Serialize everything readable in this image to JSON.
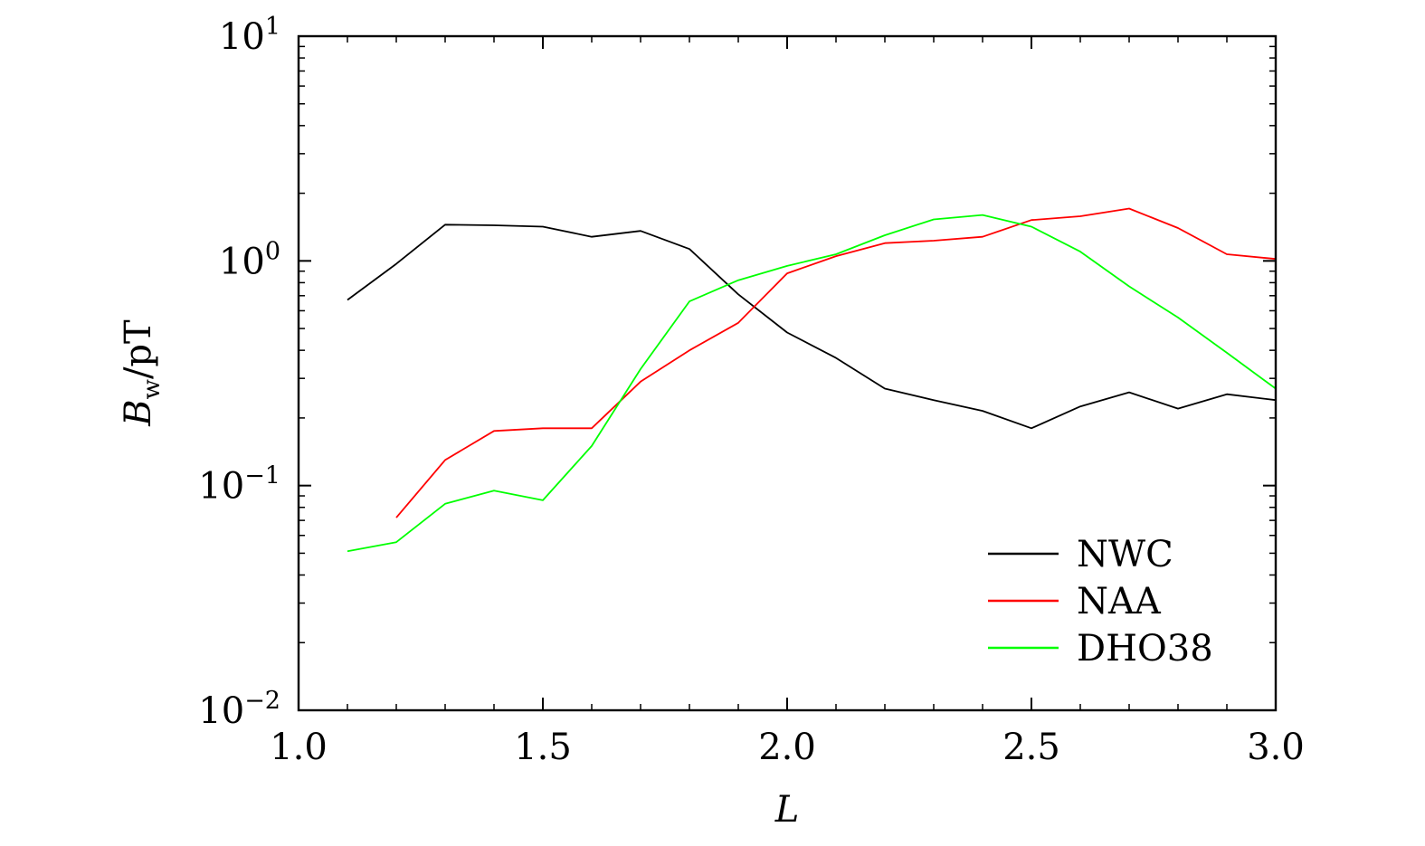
{
  "chart_data": {
    "type": "line",
    "x_scale": "linear",
    "y_scale": "log",
    "xlim": [
      1.0,
      3.0
    ],
    "ylim": [
      0.01,
      10
    ],
    "x_ticks": [
      {
        "value": 1.0,
        "label": "1.0"
      },
      {
        "value": 1.5,
        "label": "1.5"
      },
      {
        "value": 2.0,
        "label": "2.0"
      },
      {
        "value": 2.5,
        "label": "2.5"
      },
      {
        "value": 3.0,
        "label": "3.0"
      }
    ],
    "y_ticks": [
      {
        "value": 0.01,
        "base": "10",
        "exp": "−2"
      },
      {
        "value": 0.1,
        "base": "10",
        "exp": "−1"
      },
      {
        "value": 1,
        "base": "10",
        "exp": "0"
      },
      {
        "value": 10,
        "base": "10",
        "exp": "1"
      }
    ],
    "xlabel": "L",
    "ylabel": {
      "main": "B",
      "subscript": "w",
      "unit": "/pT"
    },
    "grid": false,
    "legend_position": "bottom-right",
    "series": [
      {
        "name": "NWC",
        "color": "#000000",
        "x": [
          1.1,
          1.2,
          1.3,
          1.4,
          1.5,
          1.6,
          1.7,
          1.8,
          1.9,
          2.0,
          2.1,
          2.2,
          2.3,
          2.4,
          2.5,
          2.6,
          2.7,
          2.8,
          2.9,
          3.0
        ],
        "y": [
          0.67,
          0.97,
          1.45,
          1.44,
          1.42,
          1.28,
          1.36,
          1.13,
          0.71,
          0.48,
          0.37,
          0.27,
          0.24,
          0.215,
          0.18,
          0.225,
          0.26,
          0.22,
          0.255,
          0.24
        ]
      },
      {
        "name": "NAA",
        "color": "#ff0000",
        "x": [
          1.2,
          1.3,
          1.4,
          1.5,
          1.6,
          1.7,
          1.8,
          1.9,
          2.0,
          2.1,
          2.2,
          2.3,
          2.4,
          2.5,
          2.6,
          2.7,
          2.8,
          2.9,
          3.0
        ],
        "y": [
          0.072,
          0.13,
          0.175,
          0.18,
          0.18,
          0.29,
          0.4,
          0.53,
          0.88,
          1.05,
          1.2,
          1.23,
          1.28,
          1.52,
          1.58,
          1.71,
          1.4,
          1.07,
          1.02
        ]
      },
      {
        "name": "DHO38",
        "color": "#00ff00",
        "x": [
          1.1,
          1.2,
          1.3,
          1.4,
          1.5,
          1.6,
          1.7,
          1.8,
          1.9,
          2.0,
          2.1,
          2.2,
          2.3,
          2.4,
          2.5,
          2.6,
          2.7,
          2.8,
          2.9,
          3.0
        ],
        "y": [
          0.051,
          0.056,
          0.083,
          0.095,
          0.086,
          0.15,
          0.33,
          0.66,
          0.82,
          0.95,
          1.07,
          1.3,
          1.53,
          1.6,
          1.42,
          1.1,
          0.77,
          0.56,
          0.39,
          0.27
        ]
      }
    ]
  }
}
